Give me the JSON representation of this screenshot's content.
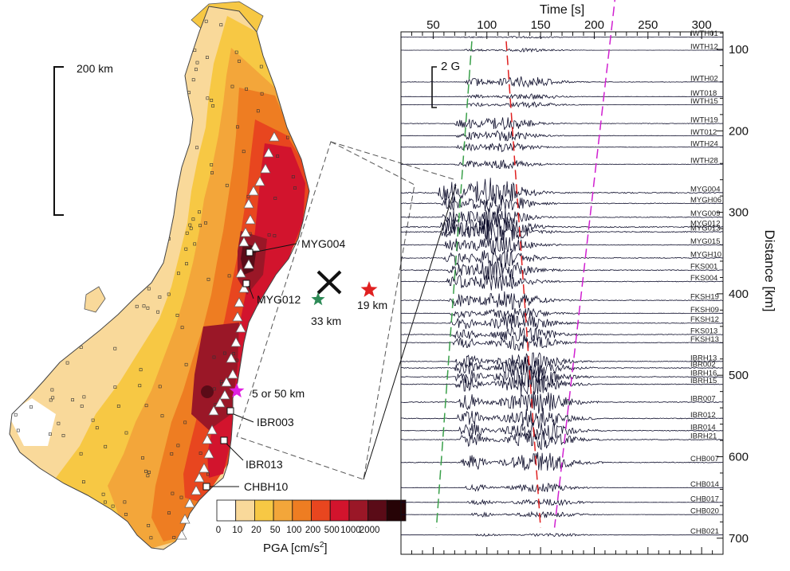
{
  "scale_bar_label": "200 km",
  "amplitude_scale_label": "2 G",
  "colorbar": {
    "title": "PGA [cm/s",
    "title_superscript": "2",
    "title_end": "]",
    "ticks": [
      "0",
      "10",
      "20",
      "50",
      "100",
      "200",
      "500",
      "1000",
      "2000"
    ],
    "colors": [
      "#ffffff",
      "#f9d99a",
      "#f7c844",
      "#f3a63a",
      "#ee7d22",
      "#e8461f",
      "#d2142d",
      "#9a1727",
      "#5a0b17",
      "#260306"
    ]
  },
  "map_stations": [
    {
      "name": "MYG004"
    },
    {
      "name": "MYG012"
    },
    {
      "name": "IBR003"
    },
    {
      "name": "IBR013"
    },
    {
      "name": "CHBH10"
    }
  ],
  "sources": [
    {
      "label": "33 km",
      "color": "#2e8b57"
    },
    {
      "label": "19 km",
      "color": "#e02020"
    },
    {
      "label": "5 or 50 km",
      "color": "#e020e0"
    }
  ],
  "record_section": {
    "time_axis_title": "Time [s]",
    "time_ticks": [
      50,
      100,
      150,
      200,
      250,
      300
    ],
    "distance_axis_title": "Distance [km]",
    "distance_ticks": [
      100,
      200,
      300,
      400,
      500,
      600,
      700
    ],
    "velocity_lines": [
      {
        "color": "#3aa04a",
        "from": [
          86,
          90
        ],
        "to": [
          53,
          687
        ]
      },
      {
        "color": "#e02020",
        "from": [
          118,
          90
        ],
        "to": [
          150,
          687
        ]
      },
      {
        "color": "#d020d0",
        "from": [
          220,
          30
        ],
        "to": [
          163,
          687
        ]
      }
    ],
    "stations": [
      {
        "name": "IWTH01",
        "distance": 85,
        "amp": 0.3,
        "onset": 75,
        "peak": 140
      },
      {
        "name": "IWTH12",
        "distance": 101,
        "amp": 0.5,
        "onset": 78,
        "peak": 140
      },
      {
        "name": "IWTH02",
        "distance": 140,
        "amp": 1.6,
        "onset": 80,
        "peak": 135
      },
      {
        "name": "IWT018",
        "distance": 158,
        "amp": 0.8,
        "onset": 82,
        "peak": 140
      },
      {
        "name": "IWTH15",
        "distance": 168,
        "amp": 0.8,
        "onset": 82,
        "peak": 140
      },
      {
        "name": "IWTH19",
        "distance": 191,
        "amp": 1.9,
        "onset": 70,
        "peak": 115
      },
      {
        "name": "IWT012",
        "distance": 206,
        "amp": 1.5,
        "onset": 72,
        "peak": 115
      },
      {
        "name": "IWTH24",
        "distance": 220,
        "amp": 1.3,
        "onset": 72,
        "peak": 115
      },
      {
        "name": "IWTH28",
        "distance": 241,
        "amp": 1.4,
        "onset": 70,
        "peak": 115
      },
      {
        "name": "MYG004",
        "distance": 276,
        "amp": 4.2,
        "onset": 55,
        "peak": 105
      },
      {
        "name": "MYGH06",
        "distance": 289,
        "amp": 2.8,
        "onset": 56,
        "peak": 110
      },
      {
        "name": "MYG009",
        "distance": 306,
        "amp": 3.0,
        "onset": 58,
        "peak": 105
      },
      {
        "name": "MYG012",
        "distance": 318,
        "amp": 4.0,
        "onset": 57,
        "peak": 105
      },
      {
        "name": "MYG013",
        "distance": 324,
        "amp": 3.5,
        "onset": 58,
        "peak": 110
      },
      {
        "name": "MYG015",
        "distance": 340,
        "amp": 2.6,
        "onset": 60,
        "peak": 110
      },
      {
        "name": "MYGH10",
        "distance": 356,
        "amp": 2.8,
        "onset": 60,
        "peak": 110
      },
      {
        "name": "FKS001",
        "distance": 371,
        "amp": 3.2,
        "onset": 63,
        "peak": 110
      },
      {
        "name": "FKS004",
        "distance": 385,
        "amp": 2.6,
        "onset": 63,
        "peak": 110
      },
      {
        "name": "FKSH19",
        "distance": 408,
        "amp": 2.6,
        "onset": 64,
        "peak": 120
      },
      {
        "name": "FKSH09",
        "distance": 424,
        "amp": 1.8,
        "onset": 65,
        "peak": 125
      },
      {
        "name": "FKSH12",
        "distance": 436,
        "amp": 2.5,
        "onset": 66,
        "peak": 130
      },
      {
        "name": "FKS013",
        "distance": 450,
        "amp": 2.3,
        "onset": 67,
        "peak": 135
      },
      {
        "name": "FKSH13",
        "distance": 460,
        "amp": 2.2,
        "onset": 68,
        "peak": 135
      },
      {
        "name": "IBRH13",
        "distance": 483,
        "amp": 2.6,
        "onset": 70,
        "peak": 140
      },
      {
        "name": "IBR002",
        "distance": 491,
        "amp": 3.0,
        "onset": 70,
        "peak": 140
      },
      {
        "name": "IBRH16",
        "distance": 502,
        "amp": 3.2,
        "onset": 71,
        "peak": 140
      },
      {
        "name": "IBRH15",
        "distance": 511,
        "amp": 3.0,
        "onset": 71,
        "peak": 140
      },
      {
        "name": "IBR007",
        "distance": 533,
        "amp": 3.4,
        "onset": 72,
        "peak": 145
      },
      {
        "name": "IBR012",
        "distance": 553,
        "amp": 3.2,
        "onset": 73,
        "peak": 145
      },
      {
        "name": "IBR014",
        "distance": 568,
        "amp": 3.0,
        "onset": 74,
        "peak": 148
      },
      {
        "name": "IBRH21",
        "distance": 579,
        "amp": 2.8,
        "onset": 74,
        "peak": 148
      },
      {
        "name": "CHB007",
        "distance": 607,
        "amp": 3.0,
        "onset": 76,
        "peak": 150
      },
      {
        "name": "CHB014",
        "distance": 638,
        "amp": 1.3,
        "onset": 80,
        "peak": 150
      },
      {
        "name": "CHB017",
        "distance": 656,
        "amp": 1.0,
        "onset": 82,
        "peak": 155
      },
      {
        "name": "CHB020",
        "distance": 671,
        "amp": 0.9,
        "onset": 84,
        "peak": 155
      },
      {
        "name": "CHB021",
        "distance": 696,
        "amp": 0.5,
        "onset": 88,
        "peak": 160
      }
    ]
  }
}
